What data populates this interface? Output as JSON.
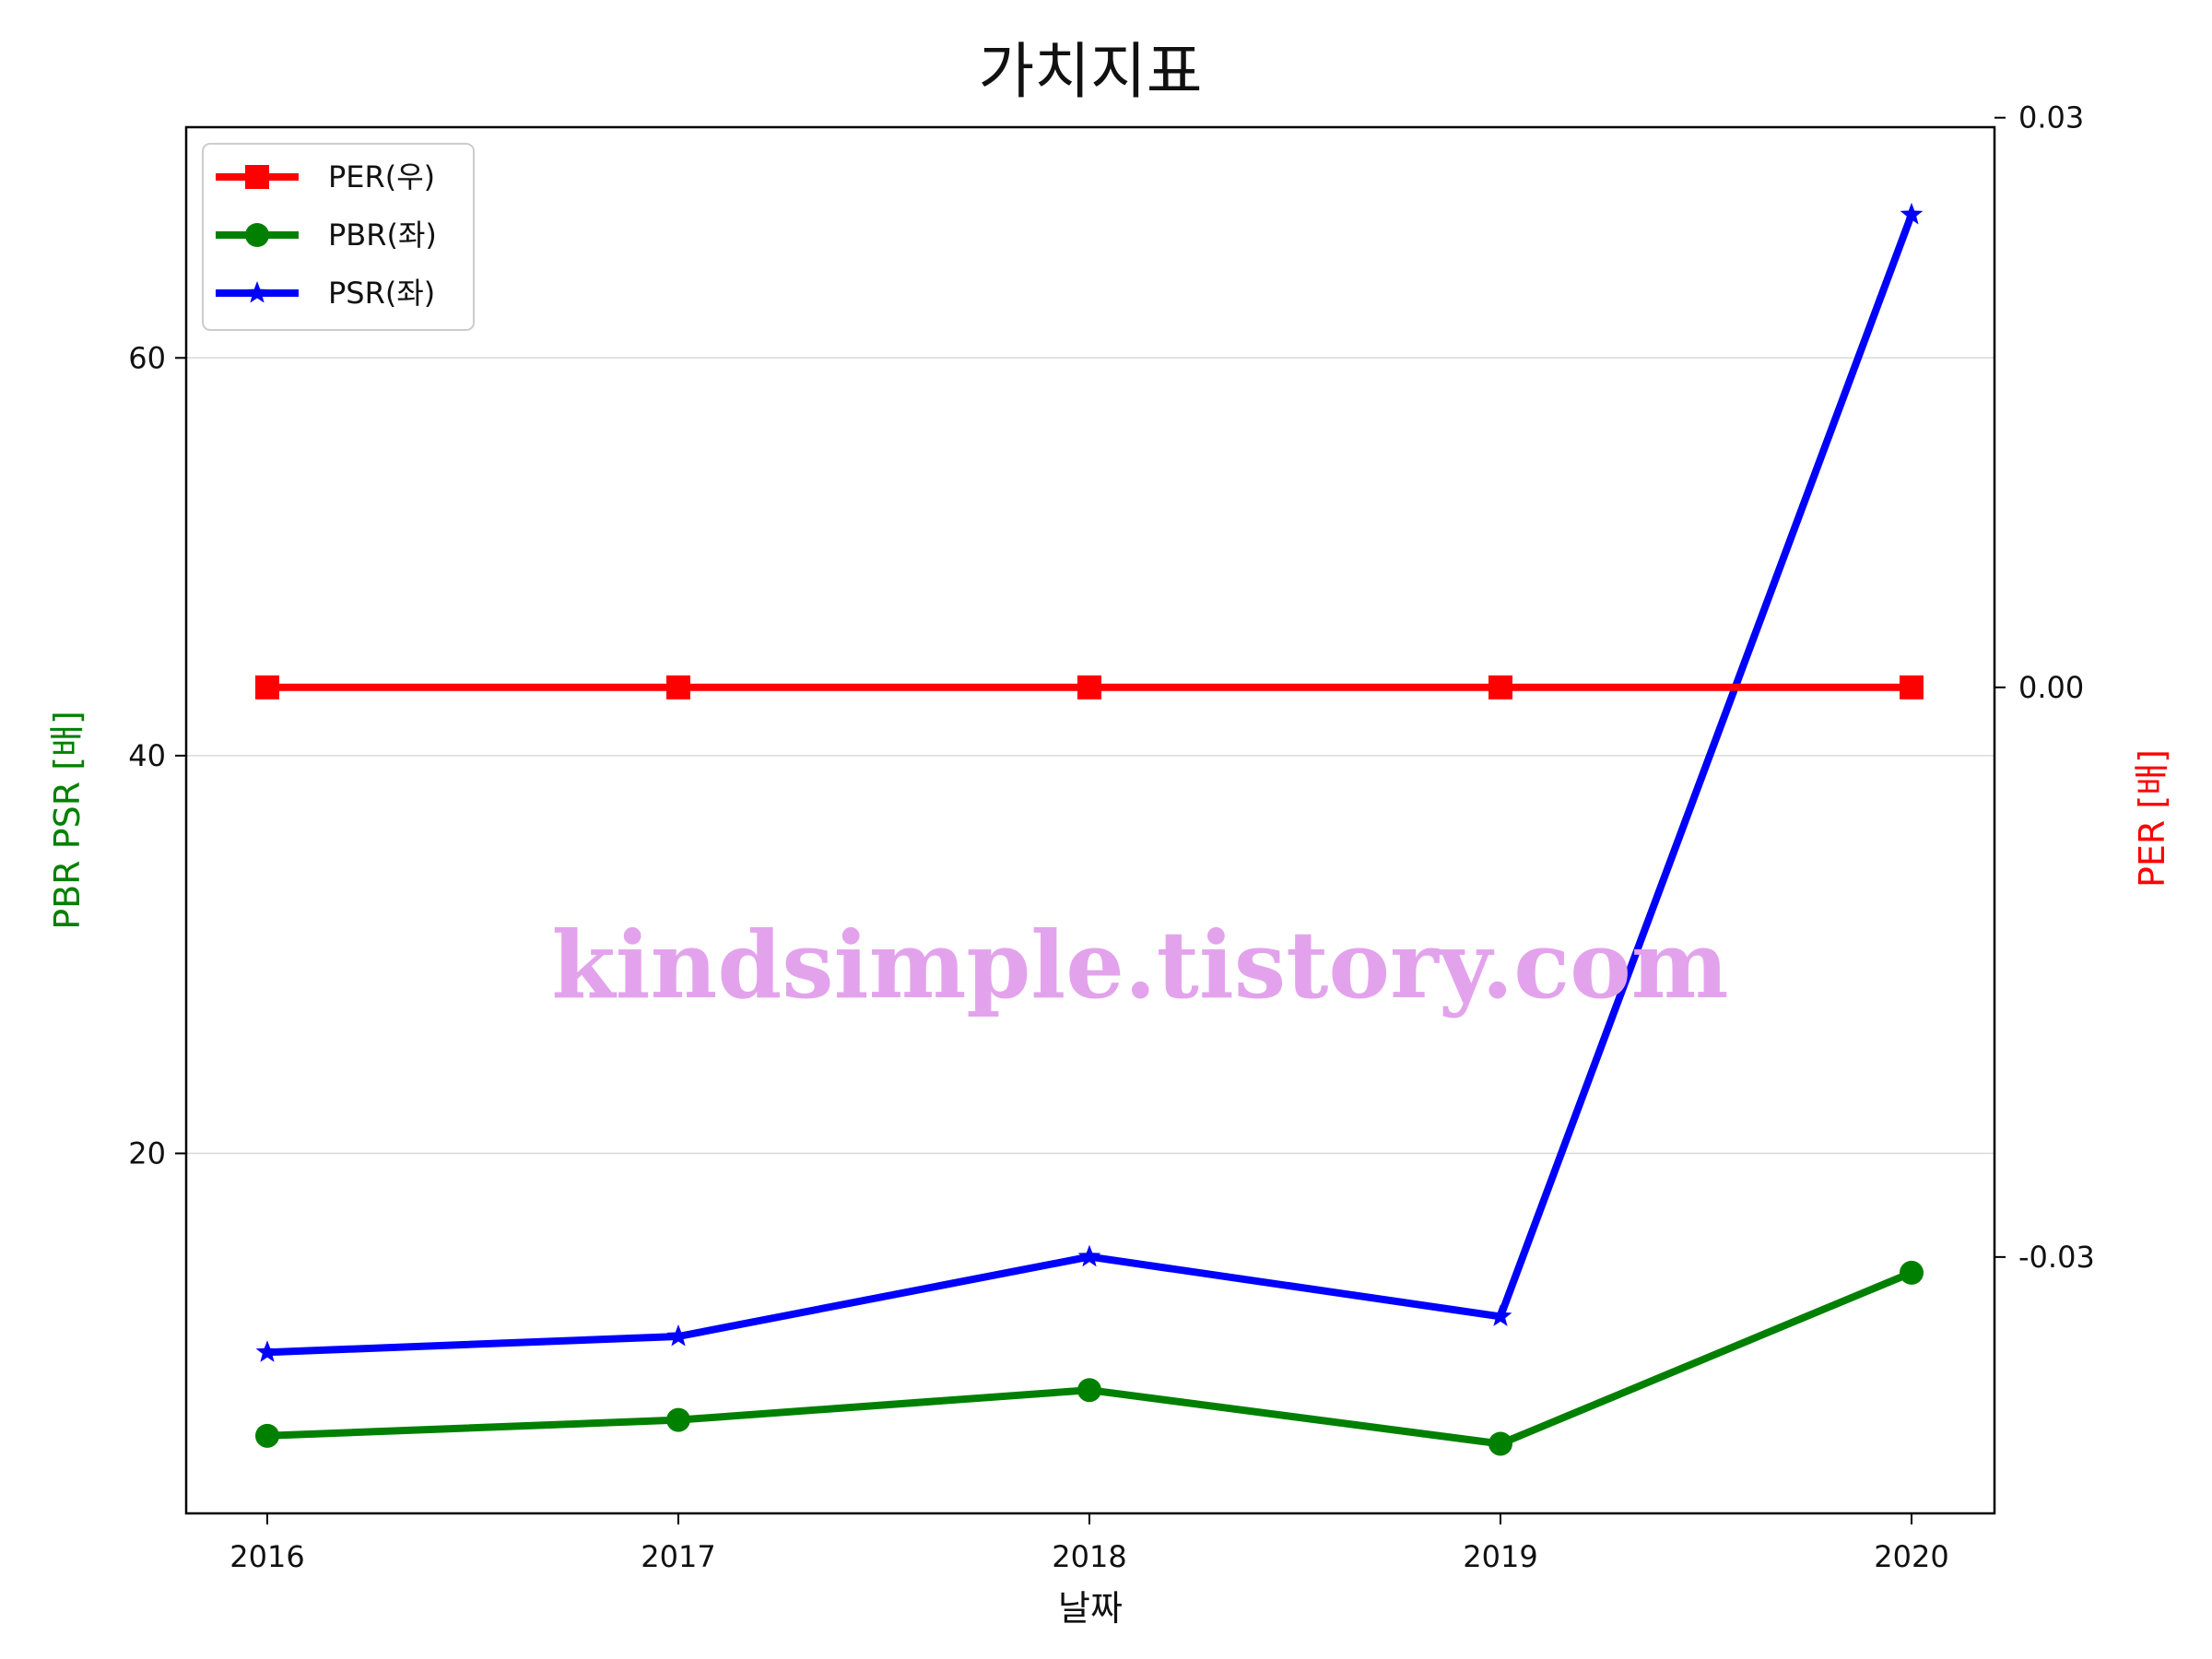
{
  "chart_data": {
    "type": "line",
    "title": "가치지표",
    "xlabel": "날짜",
    "ylabel_left": "PBR PSR [배]",
    "ylabel_right": "PER [배]",
    "x": [
      "2016",
      "2017",
      "2018",
      "2019",
      "2020"
    ],
    "left_axis": {
      "ylim": [
        1.9,
        71.6
      ],
      "ticks": [
        "20",
        "40",
        "60"
      ],
      "tick_values": [
        20,
        40,
        60
      ]
    },
    "right_axis": {
      "ylim": [
        -0.0435,
        0.0295
      ],
      "ticks": [
        "0.03",
        "0.00",
        "-0.03"
      ],
      "tick_values": [
        0.03,
        0.0,
        -0.03
      ]
    },
    "grid": "horizontal",
    "legend_position": "top-left",
    "series": [
      {
        "name": "PER(우)",
        "axis": "right",
        "color": "#ff0000",
        "marker": "square",
        "values": [
          0.0,
          0.0,
          0.0,
          0.0,
          0.0
        ]
      },
      {
        "name": "PBR(좌)",
        "axis": "left",
        "color": "#008000",
        "marker": "circle",
        "values": [
          5.8,
          6.6,
          8.1,
          5.4,
          14.0
        ]
      },
      {
        "name": "PSR(좌)",
        "axis": "left",
        "color": "#0000ff",
        "marker": "star",
        "values": [
          10.0,
          10.8,
          14.8,
          11.8,
          67.2
        ]
      }
    ],
    "watermark": "kindsimple.tistory.com",
    "colors": {
      "ylabel_left": "#008000",
      "ylabel_right": "#ff0000",
      "watermark": "#e3a3ec"
    }
  }
}
